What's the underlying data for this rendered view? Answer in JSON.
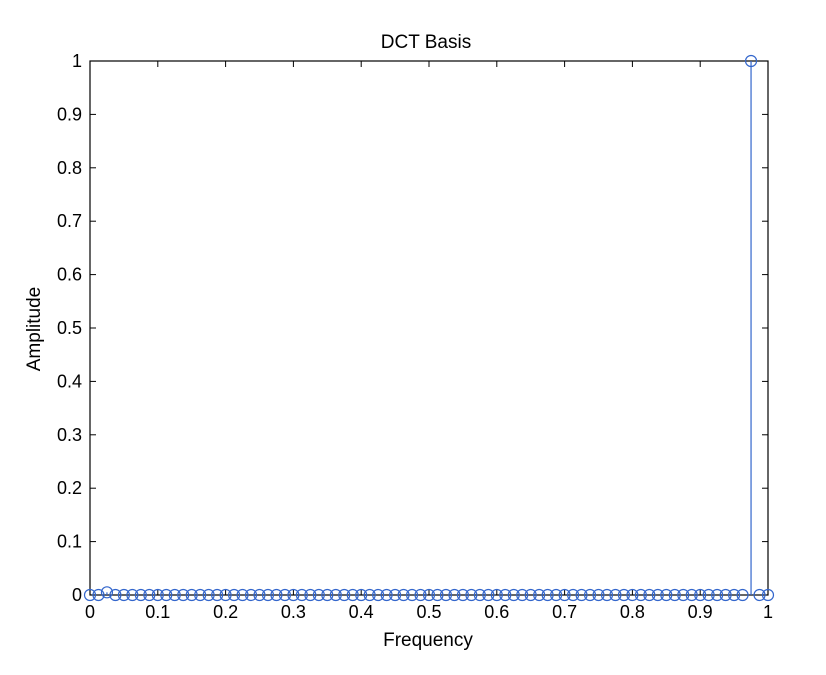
{
  "chart_data": {
    "type": "stem",
    "title": "DCT Basis",
    "xlabel": "Frequency",
    "ylabel": "Amplitude",
    "xlim": [
      0,
      1
    ],
    "ylim": [
      0,
      1
    ],
    "xticks": [
      0,
      0.1,
      0.2,
      0.3,
      0.4,
      0.5,
      0.6,
      0.7,
      0.8,
      0.9,
      1
    ],
    "xtick_labels": [
      "0",
      "0.1",
      "0.2",
      "0.3",
      "0.4",
      "0.5",
      "0.6",
      "0.7",
      "0.8",
      "0.9",
      "1"
    ],
    "yticks": [
      0,
      0.1,
      0.2,
      0.3,
      0.4,
      0.5,
      0.6,
      0.7,
      0.8,
      0.9,
      1
    ],
    "ytick_labels": [
      "0",
      "0.1",
      "0.2",
      "0.3",
      "0.4",
      "0.5",
      "0.6",
      "0.7",
      "0.8",
      "0.9",
      "1"
    ],
    "grid": false,
    "series_color": "#3366cc",
    "x": [
      0,
      0.0125,
      0.025,
      0.0375,
      0.05,
      0.0625,
      0.075,
      0.0875,
      0.1,
      0.1125,
      0.125,
      0.1375,
      0.15,
      0.1625,
      0.175,
      0.1875,
      0.2,
      0.2125,
      0.225,
      0.2375,
      0.25,
      0.2625,
      0.275,
      0.2875,
      0.3,
      0.3125,
      0.325,
      0.3375,
      0.35,
      0.3625,
      0.375,
      0.3875,
      0.4,
      0.4125,
      0.425,
      0.4375,
      0.45,
      0.4625,
      0.475,
      0.4875,
      0.5,
      0.5125,
      0.525,
      0.5375,
      0.55,
      0.5625,
      0.575,
      0.5875,
      0.6,
      0.6125,
      0.625,
      0.6375,
      0.65,
      0.6625,
      0.675,
      0.6875,
      0.7,
      0.7125,
      0.725,
      0.7375,
      0.75,
      0.7625,
      0.775,
      0.7875,
      0.8,
      0.8125,
      0.825,
      0.8375,
      0.85,
      0.8625,
      0.875,
      0.8875,
      0.9,
      0.9125,
      0.925,
      0.9375,
      0.95,
      0.9625,
      0.975,
      0.9875,
      1.0
    ],
    "y": [
      0,
      0,
      0.005,
      0,
      0,
      0,
      0,
      0,
      0,
      0,
      0,
      0,
      0,
      0,
      0,
      0,
      0,
      0,
      0,
      0,
      0,
      0,
      0,
      0,
      0,
      0,
      0,
      0,
      0,
      0,
      0,
      0,
      0,
      0,
      0,
      0,
      0,
      0,
      0,
      0,
      0,
      0,
      0,
      0,
      0,
      0,
      0,
      0,
      0,
      0,
      0,
      0,
      0,
      0,
      0,
      0,
      0,
      0,
      0,
      0,
      0,
      0,
      0,
      0,
      0,
      0,
      0,
      0,
      0,
      0,
      0,
      0,
      0,
      0,
      0,
      0,
      0,
      0,
      1,
      0,
      0
    ]
  }
}
